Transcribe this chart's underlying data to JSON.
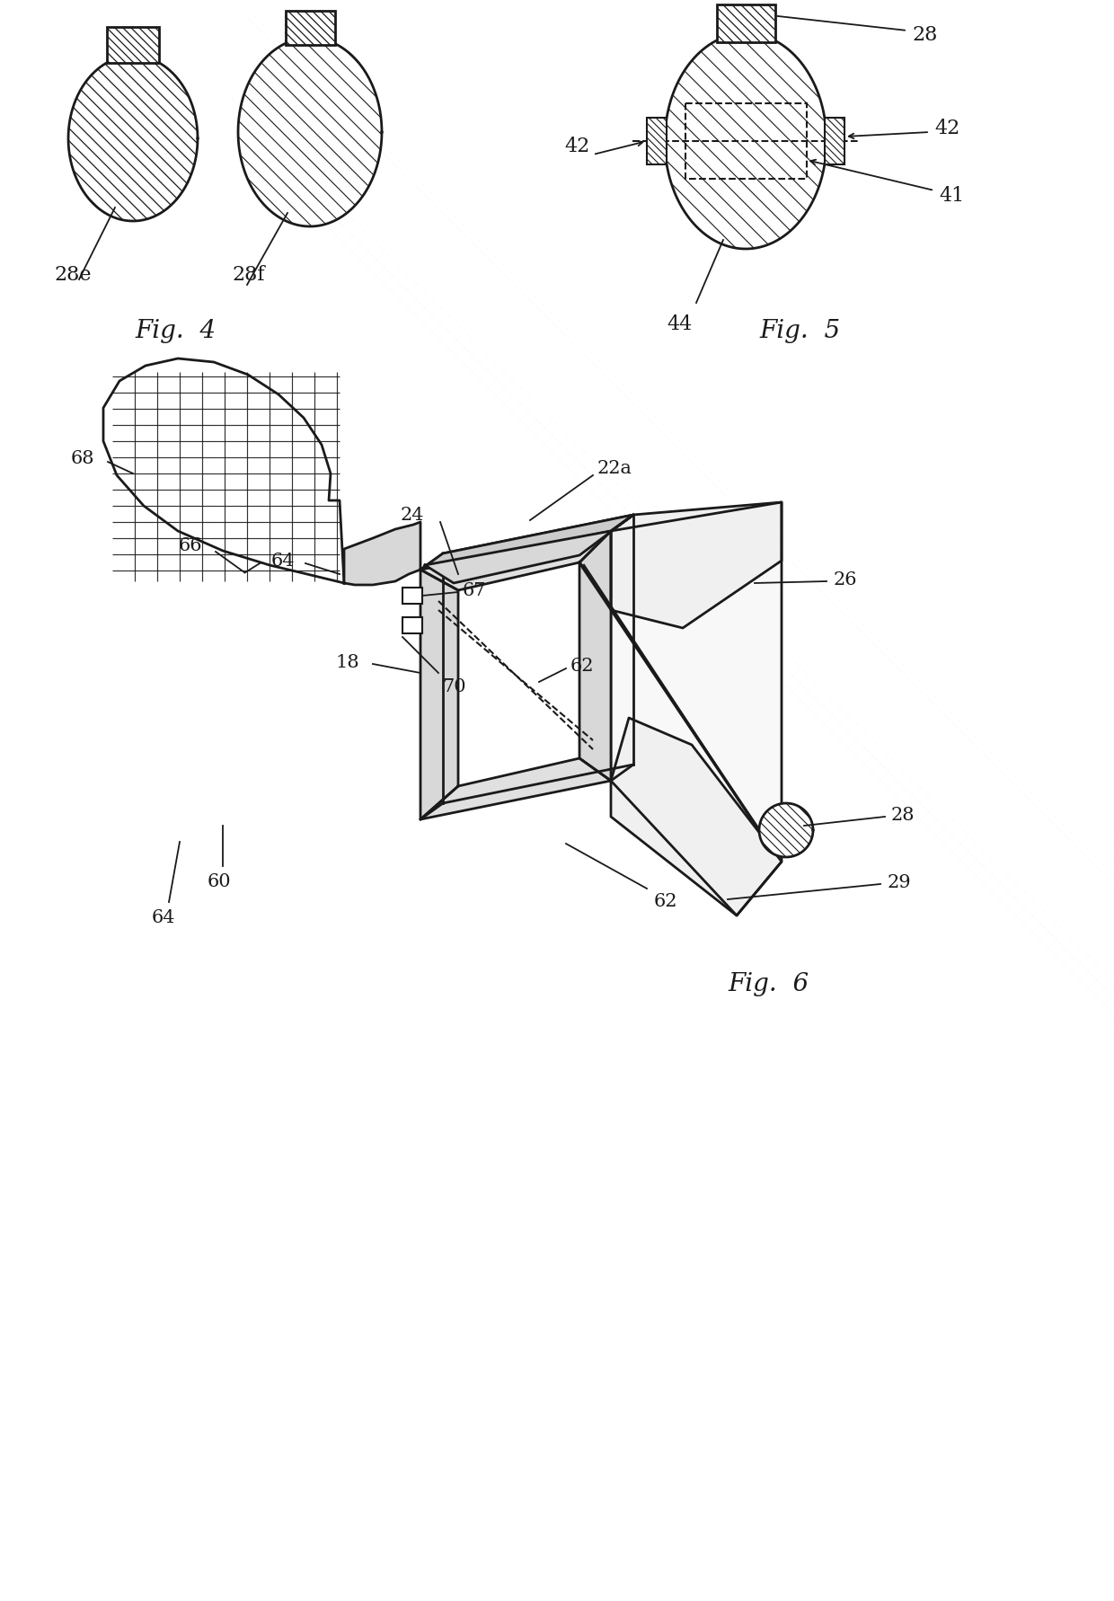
{
  "bg_color": "#ffffff",
  "lc": "#1a1a1a",
  "lw_main": 2.0,
  "lw_thin": 1.3,
  "fs_label": 13,
  "fs_fig": 20,
  "fig4_caption": "Fig.  4",
  "fig5_caption": "Fig.  5",
  "fig6_caption": "Fig.  6"
}
